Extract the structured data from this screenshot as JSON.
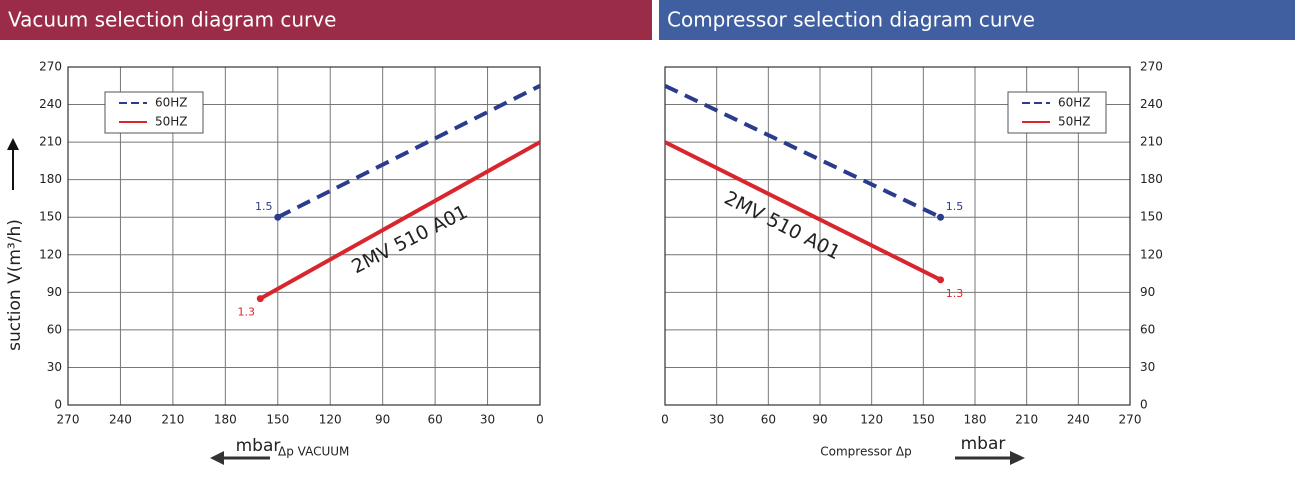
{
  "chart_data": [
    {
      "type": "line",
      "title": "Vacuum selection diagram curve",
      "header_color": "#9b2c47",
      "ylabel": "suction V(m³/h)",
      "xlabel_unit": "mbar",
      "xlabel": "Δp VACUUM",
      "annotation": "2MV 510 A01",
      "yaxis_side": "left",
      "legend": "upper left",
      "grid": true,
      "xlim": [
        270,
        0
      ],
      "ylim": [
        0,
        270
      ],
      "xticks": [
        270,
        240,
        210,
        180,
        150,
        120,
        90,
        60,
        30,
        0
      ],
      "yticks": [
        0,
        30,
        60,
        90,
        120,
        150,
        180,
        210,
        240,
        270
      ],
      "series": [
        {
          "name": "60HZ",
          "color": "#2b3c8f",
          "linestyle": "dashed",
          "endpoint_label": "1.5",
          "x": [
            150,
            0
          ],
          "values": [
            150,
            255
          ]
        },
        {
          "name": "50HZ",
          "color": "#d9262e",
          "linestyle": "solid",
          "endpoint_label": "1.3",
          "x": [
            160,
            0
          ],
          "values": [
            85,
            210
          ]
        }
      ]
    },
    {
      "type": "line",
      "title": "Compressor selection diagram curve",
      "header_color": "#3f5fa0",
      "xlabel": "Compressor Δp",
      "xlabel_unit": "mbar",
      "annotation": "2MV 510 A01",
      "yaxis_side": "right",
      "legend": "upper right",
      "grid": true,
      "xlim": [
        0,
        270
      ],
      "ylim": [
        0,
        270
      ],
      "xticks": [
        0,
        30,
        60,
        90,
        120,
        150,
        180,
        210,
        240,
        270
      ],
      "yticks": [
        0,
        30,
        60,
        90,
        120,
        150,
        180,
        210,
        240,
        270
      ],
      "series": [
        {
          "name": "60HZ",
          "color": "#2b3c8f",
          "linestyle": "dashed",
          "endpoint_label": "1.5",
          "x": [
            0,
            160
          ],
          "values": [
            255,
            150
          ]
        },
        {
          "name": "50HZ",
          "color": "#d9262e",
          "linestyle": "solid",
          "endpoint_label": "1.3",
          "x": [
            0,
            160
          ],
          "values": [
            210,
            100
          ]
        }
      ]
    }
  ]
}
